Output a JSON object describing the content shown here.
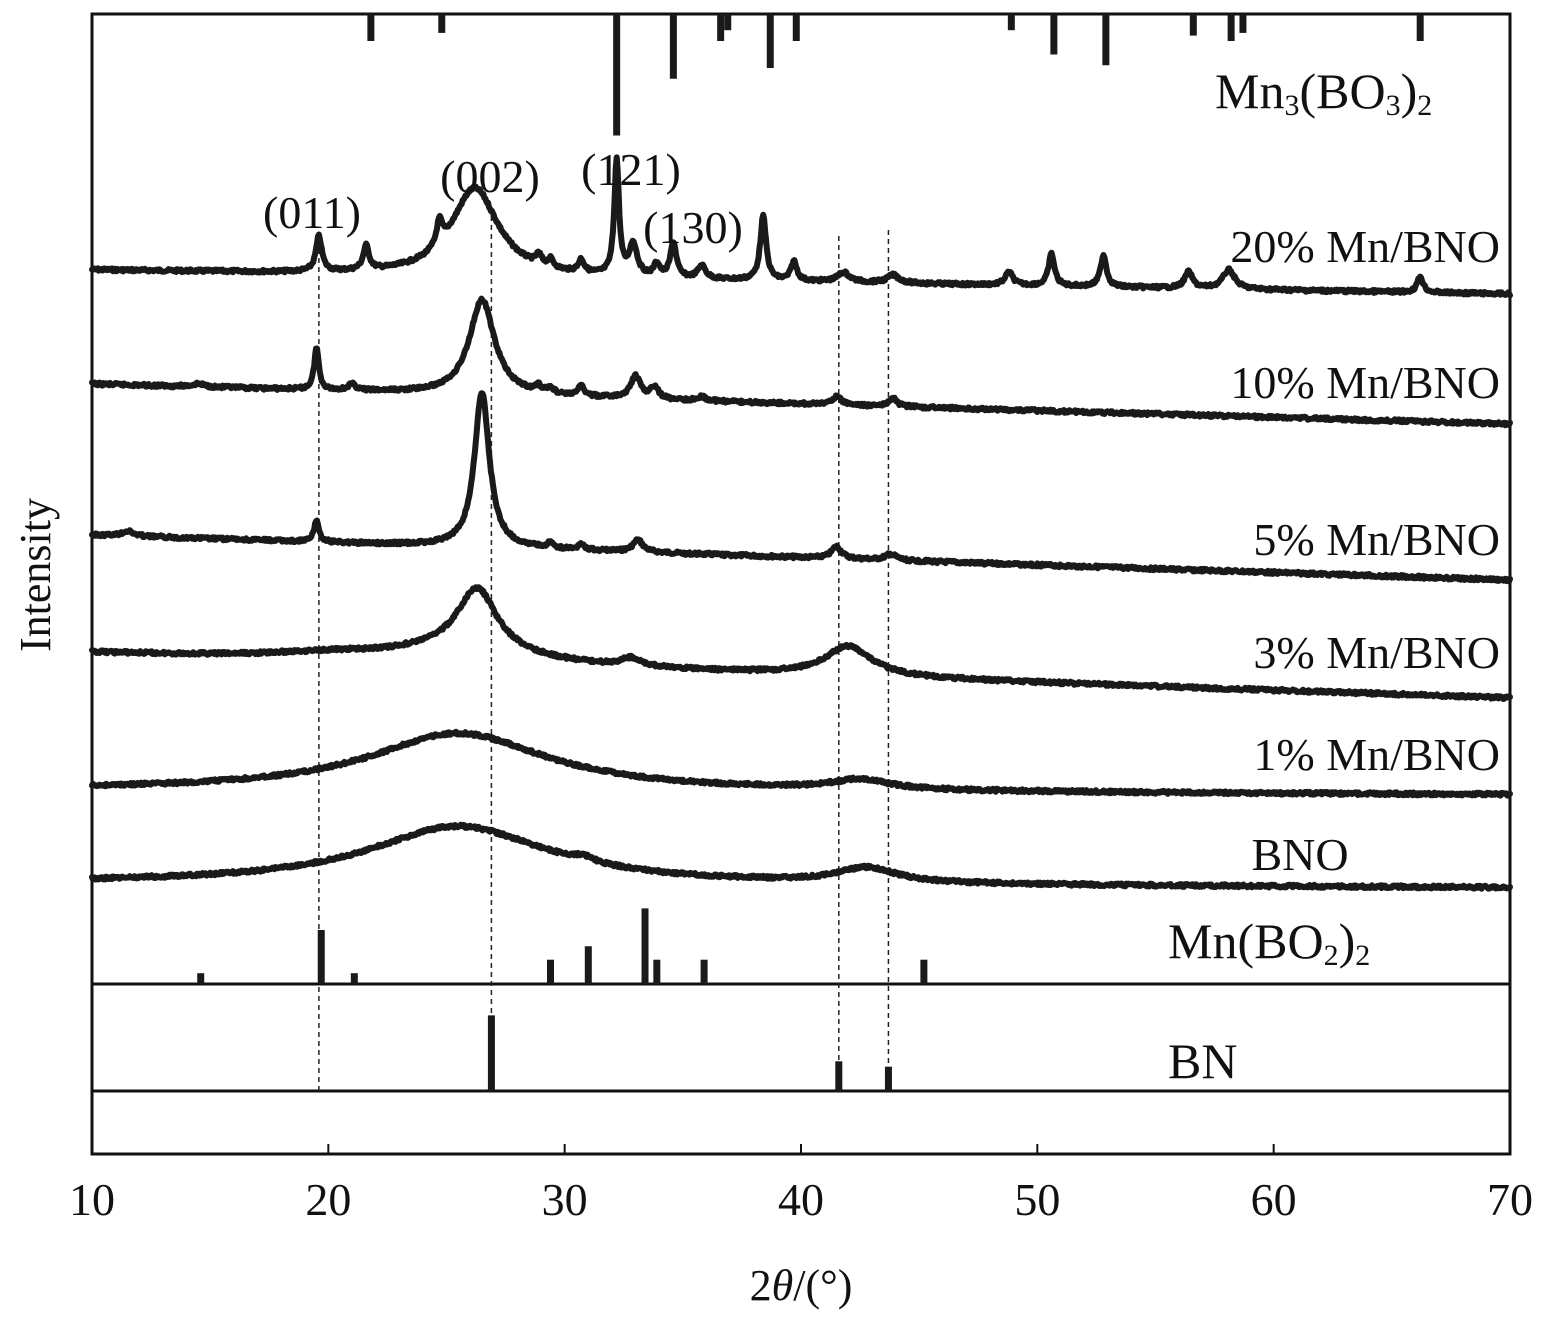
{
  "chart_data": {
    "type": "line",
    "title": "",
    "xlabel_prefix": "2",
    "xlabel_symbol": "θ",
    "xlabel_suffix": "/(°)",
    "ylabel": "Intensity",
    "xlim": [
      10,
      70
    ],
    "x_ticks": [
      "10",
      "20",
      "30",
      "40",
      "50",
      "60",
      "70"
    ],
    "grid": false,
    "line_color": "#1a1a1a",
    "series": [
      {
        "name": "20% Mn/BNO",
        "baseline": [
          [
            10,
            0.0
          ],
          [
            70,
            -0.15
          ]
        ],
        "peaks": [
          [
            19.6,
            0.22,
            0.15
          ],
          [
            21.6,
            0.15,
            0.15
          ],
          [
            24.7,
            0.15,
            0.15
          ],
          [
            26.2,
            0.55,
            1.2
          ],
          [
            28.9,
            0.06,
            0.15
          ],
          [
            29.4,
            0.05,
            0.15
          ],
          [
            30.7,
            0.08,
            0.15
          ],
          [
            32.2,
            0.72,
            0.12
          ],
          [
            32.9,
            0.2,
            0.2
          ],
          [
            33.9,
            0.08,
            0.15
          ],
          [
            34.6,
            0.22,
            0.15
          ],
          [
            35.8,
            0.08,
            0.2
          ],
          [
            38.4,
            0.4,
            0.15
          ],
          [
            39.7,
            0.12,
            0.15
          ],
          [
            41.8,
            0.06,
            0.3
          ],
          [
            43.9,
            0.05,
            0.3
          ],
          [
            48.8,
            0.08,
            0.2
          ],
          [
            50.6,
            0.2,
            0.15
          ],
          [
            52.8,
            0.2,
            0.15
          ],
          [
            56.4,
            0.1,
            0.2
          ],
          [
            58.1,
            0.12,
            0.3
          ],
          [
            66.2,
            0.1,
            0.15
          ]
        ]
      },
      {
        "name": "10% Mn/BNO",
        "baseline": [
          [
            10,
            0.0
          ],
          [
            70,
            -0.4
          ]
        ],
        "peaks": [
          [
            14.5,
            0.03,
            0.3
          ],
          [
            19.5,
            0.42,
            0.12
          ],
          [
            21.0,
            0.06,
            0.2
          ],
          [
            26.5,
            0.95,
            0.65
          ],
          [
            28.9,
            0.06,
            0.15
          ],
          [
            29.4,
            0.06,
            0.15
          ],
          [
            30.7,
            0.1,
            0.15
          ],
          [
            33.0,
            0.22,
            0.25
          ],
          [
            33.8,
            0.12,
            0.2
          ],
          [
            35.8,
            0.04,
            0.2
          ],
          [
            41.5,
            0.08,
            0.25
          ],
          [
            43.9,
            0.08,
            0.2
          ]
        ]
      },
      {
        "name": "5% Mn/BNO",
        "baseline": [
          [
            10,
            0.0
          ],
          [
            70,
            -0.45
          ]
        ],
        "peaks": [
          [
            11.5,
            0.05,
            0.3
          ],
          [
            19.5,
            0.22,
            0.12
          ],
          [
            26.5,
            1.55,
            0.38
          ],
          [
            29.4,
            0.05,
            0.15
          ],
          [
            30.7,
            0.06,
            0.15
          ],
          [
            33.1,
            0.12,
            0.25
          ],
          [
            41.5,
            0.12,
            0.25
          ],
          [
            43.8,
            0.06,
            0.3
          ]
        ]
      },
      {
        "name": "3% Mn/BNO",
        "baseline": [
          [
            10,
            0.0
          ],
          [
            70,
            -0.45
          ]
        ],
        "peaks": [
          [
            20.0,
            0.05,
            3.0
          ],
          [
            26.3,
            0.62,
            1.0
          ],
          [
            25.5,
            0.15,
            3.5
          ],
          [
            32.8,
            0.08,
            0.5
          ],
          [
            42.0,
            0.3,
            1.2
          ]
        ]
      },
      {
        "name": "1% Mn/BNO",
        "baseline": [
          [
            10,
            0.0
          ],
          [
            70,
            -0.05
          ]
        ],
        "peaks": [
          [
            25.5,
            0.58,
            4.6
          ],
          [
            42.5,
            0.1,
            1.5
          ]
        ]
      },
      {
        "name": "BNO",
        "baseline": [
          [
            10,
            0.0
          ],
          [
            70,
            -0.05
          ]
        ],
        "peaks": [
          [
            25.5,
            0.58,
            4.6
          ],
          [
            30.8,
            0.05,
            0.5
          ],
          [
            42.8,
            0.15,
            1.5
          ]
        ]
      }
    ],
    "annotations": {
      "miller_indices": [
        {
          "label": "(011)",
          "x": 19.6
        },
        {
          "label": "(002)",
          "x": 26.9
        },
        {
          "label": "(121)",
          "x": 32.2
        },
        {
          "label": "(130)",
          "x": 34.6
        }
      ],
      "reference_lines_x": [
        19.6,
        26.9,
        41.6,
        43.7
      ]
    },
    "references": [
      {
        "name": "Mn3(BO3)2",
        "label_parts": [
          [
            "Mn",
            0
          ],
          [
            "3",
            1
          ],
          [
            "(BO",
            0
          ],
          [
            "3",
            1
          ],
          [
            ")",
            0
          ],
          [
            "2",
            1
          ]
        ],
        "sticks": [
          [
            21.8,
            0.1
          ],
          [
            24.8,
            0.07
          ],
          [
            32.2,
            0.45
          ],
          [
            34.6,
            0.24
          ],
          [
            36.6,
            0.1
          ],
          [
            36.9,
            0.06
          ],
          [
            38.7,
            0.2
          ],
          [
            39.8,
            0.1
          ],
          [
            48.9,
            0.06
          ],
          [
            50.7,
            0.15
          ],
          [
            52.9,
            0.19
          ],
          [
            56.6,
            0.08
          ],
          [
            58.2,
            0.1
          ],
          [
            58.7,
            0.07
          ],
          [
            66.2,
            0.1
          ]
        ]
      },
      {
        "name": "Mn(BO2)2",
        "label_parts": [
          [
            "Mn(BO",
            0
          ],
          [
            "2",
            1
          ],
          [
            ")",
            0
          ],
          [
            "2",
            1
          ]
        ],
        "sticks": [
          [
            14.6,
            0.04
          ],
          [
            19.7,
            0.2
          ],
          [
            21.1,
            0.04
          ],
          [
            29.4,
            0.09
          ],
          [
            31.0,
            0.14
          ],
          [
            33.4,
            0.28
          ],
          [
            33.9,
            0.09
          ],
          [
            35.9,
            0.09
          ],
          [
            45.2,
            0.09
          ]
        ]
      },
      {
        "name": "BN",
        "label_parts": [
          [
            "BN",
            0
          ]
        ],
        "sticks": [
          [
            26.9,
            0.28
          ],
          [
            41.6,
            0.11
          ],
          [
            43.7,
            0.09
          ]
        ]
      }
    ]
  }
}
